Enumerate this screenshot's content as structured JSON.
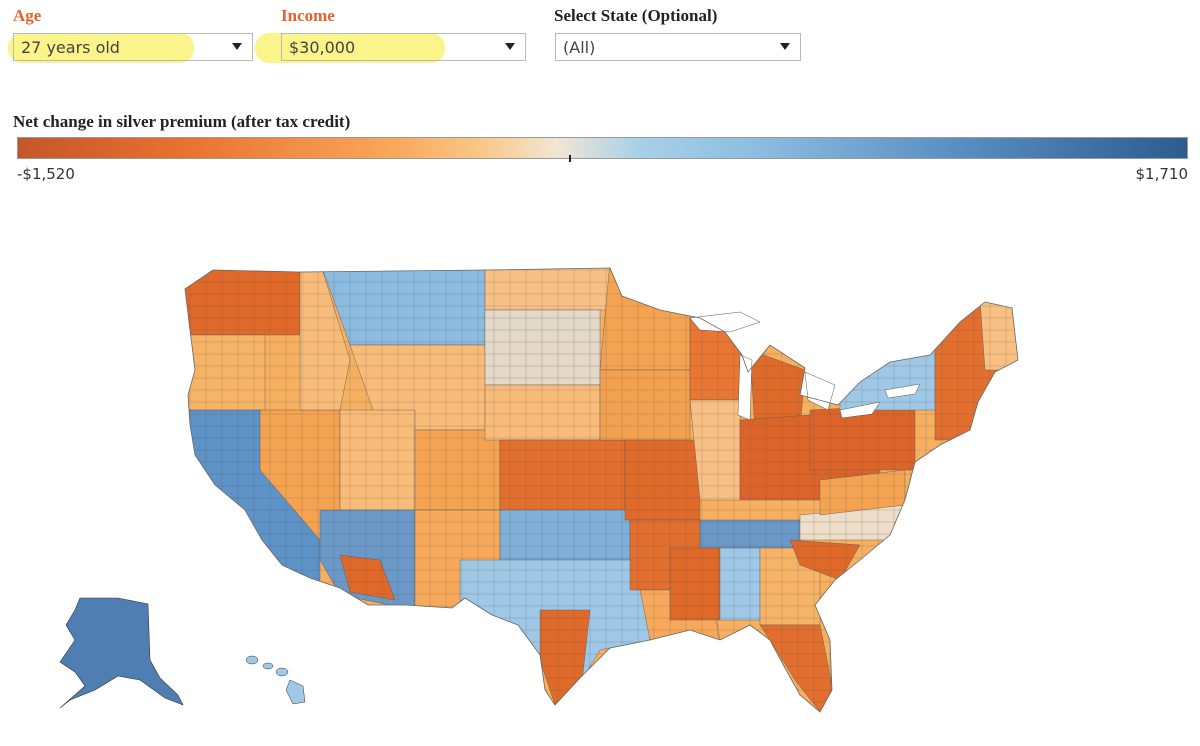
{
  "filters": {
    "age": {
      "label": "Age",
      "value": "27 years old"
    },
    "income": {
      "label": "Income",
      "value": "$30,000"
    },
    "state": {
      "label": "Select State (Optional)",
      "value": "(All)"
    }
  },
  "colors": {
    "label_accent": "#e8602c",
    "dark_orange": "#e06a2a",
    "light_orange": "#f8b466",
    "neutral": "#e6ddd0",
    "light_blue": "#9ec8e6",
    "dark_blue": "#4f7fb2",
    "highlight": "#fbf48a"
  },
  "legend": {
    "title": "Net change in silver premium (after tax credit)",
    "min_label": "-$1,520",
    "max_label": "$1,710"
  },
  "map": {
    "type": "choropleth",
    "geography": "US counties",
    "metric": "Net change in silver premium (after tax credit)",
    "scale": {
      "min": -1520,
      "max": 1710,
      "midpoint": 0
    }
  }
}
